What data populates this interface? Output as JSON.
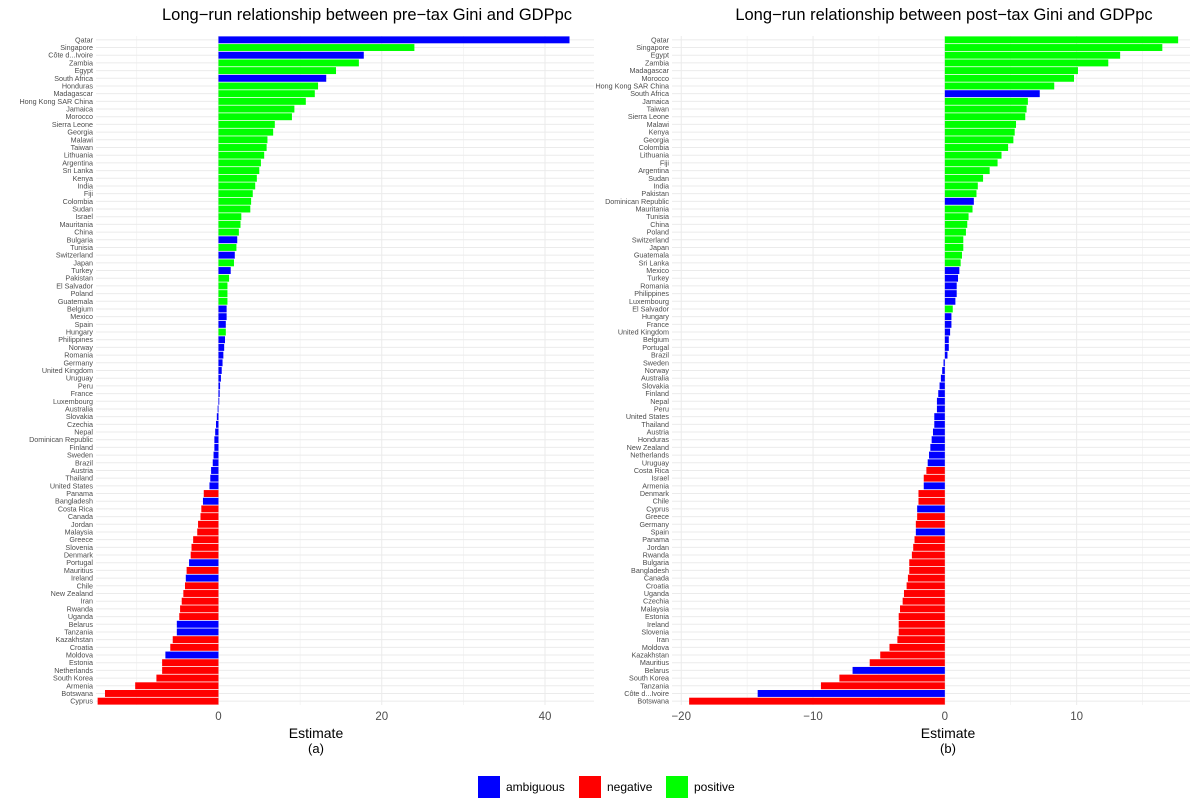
{
  "colors": {
    "ambiguous": "#0000FF",
    "negative": "#FF0000",
    "positive": "#00FF00",
    "grid": "#EBEBEB"
  },
  "legend": {
    "items": [
      {
        "key": "ambiguous",
        "label": "ambiguous"
      },
      {
        "key": "negative",
        "label": "negative"
      },
      {
        "key": "positive",
        "label": "positive"
      }
    ]
  },
  "chart_data": [
    {
      "type": "bar",
      "orientation": "horizontal",
      "title": "Long−run relationship between pre−tax Gini and GDPpc",
      "xlabel": "Estimate",
      "sublabel": "(a)",
      "xlim": [
        -15,
        46
      ],
      "xticks": [
        0,
        20,
        40
      ],
      "xtick_labels": [
        "0",
        "20",
        "40"
      ],
      "grid": true,
      "categories": [
        "Qatar",
        "Singapore",
        "Côte d...Ivoire",
        "Zambia",
        "Egypt",
        "South Africa",
        "Honduras",
        "Madagascar",
        "Hong Kong SAR China",
        "Jamaica",
        "Morocco",
        "Sierra Leone",
        "Georgia",
        "Malawi",
        "Taiwan",
        "Lithuania",
        "Argentina",
        "Sri Lanka",
        "Kenya",
        "India",
        "Fiji",
        "Colombia",
        "Sudan",
        "Israel",
        "Mauritania",
        "China",
        "Bulgaria",
        "Tunisia",
        "Switzerland",
        "Japan",
        "Turkey",
        "Pakistan",
        "El Salvador",
        "Poland",
        "Guatemala",
        "Belgium",
        "Mexico",
        "Spain",
        "Hungary",
        "Philippines",
        "Norway",
        "Romania",
        "Germany",
        "United Kingdom",
        "Uruguay",
        "Peru",
        "France",
        "Luxembourg",
        "Australia",
        "Slovakia",
        "Czechia",
        "Nepal",
        "Dominican Republic",
        "Finland",
        "Sweden",
        "Brazil",
        "Austria",
        "Thailand",
        "United States",
        "Panama",
        "Bangladesh",
        "Costa Rica",
        "Canada",
        "Jordan",
        "Malaysia",
        "Greece",
        "Slovenia",
        "Denmark",
        "Portugal",
        "Mauritius",
        "Ireland",
        "Chile",
        "New Zealand",
        "Iran",
        "Rwanda",
        "Uganda",
        "Belarus",
        "Tanzania",
        "Kazakhstan",
        "Croatia",
        "Moldova",
        "Estonia",
        "Netherlands",
        "South Korea",
        "Armenia",
        "Botswana",
        "Cyprus"
      ],
      "values": [
        43,
        24,
        17.8,
        17.2,
        14.4,
        13.2,
        12.2,
        11.8,
        10.7,
        9.3,
        9.0,
        6.9,
        6.7,
        6.0,
        5.9,
        5.6,
        5.2,
        5.0,
        4.7,
        4.5,
        4.2,
        4.0,
        3.9,
        2.8,
        2.7,
        2.5,
        2.3,
        2.2,
        2.0,
        1.9,
        1.5,
        1.3,
        1.1,
        1.1,
        1.1,
        1.0,
        1.0,
        0.9,
        0.9,
        0.8,
        0.7,
        0.6,
        0.5,
        0.4,
        0.3,
        0.2,
        0.15,
        0.1,
        -0.1,
        -0.2,
        -0.3,
        -0.4,
        -0.5,
        -0.5,
        -0.6,
        -0.7,
        -0.9,
        -1.0,
        -1.1,
        -1.8,
        -1.9,
        -2.1,
        -2.2,
        -2.5,
        -2.6,
        -3.1,
        -3.3,
        -3.4,
        -3.6,
        -3.9,
        -4.0,
        -4.1,
        -4.3,
        -4.5,
        -4.7,
        -4.8,
        -5.1,
        -5.1,
        -5.6,
        -5.9,
        -6.5,
        -6.9,
        -6.9,
        -7.6,
        -10.2,
        -13.9,
        -14.8
      ],
      "groups": [
        "ambiguous",
        "positive",
        "ambiguous",
        "positive",
        "positive",
        "ambiguous",
        "positive",
        "positive",
        "positive",
        "positive",
        "positive",
        "positive",
        "positive",
        "positive",
        "positive",
        "positive",
        "positive",
        "positive",
        "positive",
        "positive",
        "positive",
        "positive",
        "positive",
        "positive",
        "positive",
        "positive",
        "ambiguous",
        "positive",
        "ambiguous",
        "positive",
        "ambiguous",
        "positive",
        "positive",
        "positive",
        "positive",
        "ambiguous",
        "ambiguous",
        "ambiguous",
        "positive",
        "ambiguous",
        "ambiguous",
        "ambiguous",
        "ambiguous",
        "ambiguous",
        "ambiguous",
        "ambiguous",
        "ambiguous",
        "ambiguous",
        "ambiguous",
        "ambiguous",
        "ambiguous",
        "ambiguous",
        "ambiguous",
        "ambiguous",
        "ambiguous",
        "ambiguous",
        "ambiguous",
        "ambiguous",
        "ambiguous",
        "negative",
        "ambiguous",
        "negative",
        "negative",
        "negative",
        "negative",
        "negative",
        "negative",
        "negative",
        "ambiguous",
        "negative",
        "ambiguous",
        "negative",
        "negative",
        "negative",
        "negative",
        "negative",
        "ambiguous",
        "ambiguous",
        "negative",
        "negative",
        "ambiguous",
        "negative",
        "negative",
        "negative",
        "negative",
        "negative",
        "negative"
      ]
    },
    {
      "type": "bar",
      "orientation": "horizontal",
      "title": "Long−run relationship between post−tax Gini and GDPpc",
      "xlabel": "Estimate",
      "sublabel": "(b)",
      "xlim": [
        -20.7,
        18.6
      ],
      "xticks": [
        -20,
        -10,
        0,
        10
      ],
      "xtick_labels": [
        "−20",
        "−10",
        "0",
        "10"
      ],
      "grid": true,
      "categories": [
        "Qatar",
        "Singapore",
        "Egypt",
        "Zambia",
        "Madagascar",
        "Morocco",
        "Hong Kong SAR China",
        "South Africa",
        "Jamaica",
        "Taiwan",
        "Sierra Leone",
        "Malawi",
        "Kenya",
        "Georgia",
        "Colombia",
        "Lithuania",
        "Fiji",
        "Argentina",
        "Sudan",
        "India",
        "Pakistan",
        "Dominican Republic",
        "Mauritania",
        "Tunisia",
        "China",
        "Poland",
        "Switzerland",
        "Japan",
        "Guatemala",
        "Sri Lanka",
        "Mexico",
        "Turkey",
        "Romania",
        "Philippines",
        "Luxembourg",
        "El Salvador",
        "Hungary",
        "France",
        "United Kingdom",
        "Belgium",
        "Portugal",
        "Brazil",
        "Sweden",
        "Norway",
        "Australia",
        "Slovakia",
        "Finland",
        "Nepal",
        "Peru",
        "United States",
        "Thailand",
        "Austria",
        "Honduras",
        "New Zealand",
        "Netherlands",
        "Uruguay",
        "Costa Rica",
        "Israel",
        "Armenia",
        "Denmark",
        "Chile",
        "Cyprus",
        "Greece",
        "Germany",
        "Spain",
        "Panama",
        "Jordan",
        "Rwanda",
        "Bulgaria",
        "Bangladesh",
        "Canada",
        "Croatia",
        "Uganda",
        "Czechia",
        "Malaysia",
        "Estonia",
        "Ireland",
        "Slovenia",
        "Iran",
        "Moldova",
        "Kazakhstan",
        "Mauritius",
        "Belarus",
        "South Korea",
        "Tanzania",
        "Côte d...Ivoire",
        "Botswana"
      ],
      "values": [
        17.7,
        16.5,
        13.3,
        12.4,
        10.1,
        9.8,
        8.3,
        7.2,
        6.3,
        6.2,
        6.1,
        5.4,
        5.3,
        5.2,
        4.8,
        4.3,
        4.0,
        3.4,
        2.9,
        2.5,
        2.4,
        2.2,
        2.1,
        1.8,
        1.7,
        1.6,
        1.4,
        1.4,
        1.3,
        1.2,
        1.1,
        1.0,
        0.9,
        0.9,
        0.8,
        0.6,
        0.5,
        0.5,
        0.4,
        0.3,
        0.3,
        0.2,
        -0.1,
        -0.2,
        -0.3,
        -0.4,
        -0.5,
        -0.6,
        -0.6,
        -0.8,
        -0.8,
        -0.9,
        -1.0,
        -1.1,
        -1.2,
        -1.3,
        -1.4,
        -1.6,
        -1.6,
        -2.0,
        -2.0,
        -2.1,
        -2.1,
        -2.2,
        -2.2,
        -2.3,
        -2.4,
        -2.5,
        -2.7,
        -2.7,
        -2.8,
        -2.9,
        -3.1,
        -3.2,
        -3.4,
        -3.5,
        -3.5,
        -3.5,
        -3.6,
        -4.2,
        -4.9,
        -5.7,
        -7.0,
        -8.0,
        -9.4,
        -14.2,
        -19.4
      ],
      "groups": [
        "positive",
        "positive",
        "positive",
        "positive",
        "positive",
        "positive",
        "positive",
        "ambiguous",
        "positive",
        "positive",
        "positive",
        "positive",
        "positive",
        "positive",
        "positive",
        "positive",
        "positive",
        "positive",
        "positive",
        "positive",
        "positive",
        "ambiguous",
        "positive",
        "positive",
        "positive",
        "positive",
        "positive",
        "positive",
        "positive",
        "positive",
        "ambiguous",
        "ambiguous",
        "ambiguous",
        "ambiguous",
        "ambiguous",
        "positive",
        "ambiguous",
        "ambiguous",
        "ambiguous",
        "ambiguous",
        "ambiguous",
        "ambiguous",
        "ambiguous",
        "ambiguous",
        "ambiguous",
        "ambiguous",
        "ambiguous",
        "ambiguous",
        "ambiguous",
        "ambiguous",
        "ambiguous",
        "ambiguous",
        "ambiguous",
        "ambiguous",
        "ambiguous",
        "ambiguous",
        "negative",
        "negative",
        "ambiguous",
        "negative",
        "negative",
        "ambiguous",
        "negative",
        "negative",
        "ambiguous",
        "negative",
        "negative",
        "negative",
        "negative",
        "negative",
        "negative",
        "negative",
        "negative",
        "negative",
        "negative",
        "negative",
        "negative",
        "negative",
        "negative",
        "negative",
        "negative",
        "negative",
        "ambiguous",
        "negative",
        "negative",
        "ambiguous",
        "negative"
      ]
    }
  ]
}
